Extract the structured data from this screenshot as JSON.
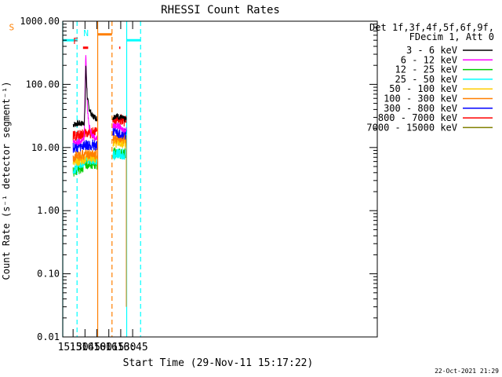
{
  "chart_data": {
    "type": "line",
    "title": "RHESSI Count Rates",
    "xlabel": "Start Time (29-Nov-11 15:17:22)",
    "ylabel": "Count Rate (s⁻¹ detector segment⁻¹)",
    "yscale": "log",
    "xlim": [
      917,
      1313
    ],
    "ylim": [
      0.01,
      1000
    ],
    "x_unit": "minutes after 00:00 UT",
    "x_ticks": [
      {
        "value": 930,
        "label": "15:30"
      },
      {
        "value": 945,
        "label": "15:45"
      },
      {
        "value": 960,
        "label": "16:00"
      },
      {
        "value": 975,
        "label": "16:15"
      },
      {
        "value": 990,
        "label": "16:30"
      },
      {
        "value": 1005,
        "label": "16:45"
      }
    ],
    "y_ticks": [
      {
        "value": 0.01,
        "label": "0.01"
      },
      {
        "value": 0.1,
        "label": "0.10"
      },
      {
        "value": 1,
        "label": "1.00"
      },
      {
        "value": 10,
        "label": "10.00"
      },
      {
        "value": 100,
        "label": "100.00"
      },
      {
        "value": 1000,
        "label": "1000.00"
      }
    ],
    "legend_header": [
      "Det 1f,3f,4f,5f,6f,9f,",
      "FDecim 1, Att 0"
    ],
    "legend_position": "top-right",
    "series": [
      {
        "name": "3 - 6 keV",
        "color": "#000000",
        "x": [
          930,
          936,
          942,
          944,
          945,
          946,
          947,
          948,
          950,
          954,
          958,
          960,
          980,
          984,
          987,
          990,
          995,
          997
        ],
        "y": [
          23,
          24,
          24,
          25,
          40,
          200,
          110,
          60,
          42,
          32,
          30,
          28,
          30,
          32,
          31,
          30,
          28,
          28
        ]
      },
      {
        "name": "6 - 12 keV",
        "color": "#ff00ff",
        "x": [
          930,
          936,
          942,
          944,
          945,
          946,
          947,
          948,
          950,
          954,
          958,
          960,
          980,
          984,
          987,
          990,
          995,
          997
        ],
        "y": [
          12,
          12,
          13,
          14,
          80,
          300,
          130,
          45,
          22,
          16,
          14,
          14,
          22,
          22,
          22,
          20,
          19,
          19
        ]
      },
      {
        "name": "12 - 25 keV",
        "color": "#00cc00",
        "x": [
          930,
          942,
          946,
          950,
          960,
          980,
          990,
          997
        ],
        "y": [
          4,
          5,
          5.5,
          5.5,
          5.5,
          8,
          8,
          8
        ]
      },
      {
        "name": "25 - 50 keV",
        "color": "#00ffff",
        "x": [
          930,
          942,
          946,
          950,
          960,
          980,
          990,
          997
        ],
        "y": [
          4.5,
          5.5,
          6.5,
          6.5,
          6.5,
          7.5,
          8,
          8
        ]
      },
      {
        "name": "50 - 100 keV",
        "color": "#ffcc00",
        "x": [
          930,
          942,
          946,
          950,
          960,
          980,
          990,
          997
        ],
        "y": [
          6,
          6.5,
          7,
          7,
          7,
          12,
          12,
          12
        ]
      },
      {
        "name": "100 - 300 keV",
        "color": "#ff7f00",
        "x": [
          930,
          942,
          946,
          950,
          960,
          980,
          990,
          997
        ],
        "y": [
          7,
          7.5,
          8,
          8,
          8,
          14,
          14,
          14
        ]
      },
      {
        "name": "300 - 800 keV",
        "color": "#0000ff",
        "x": [
          930,
          942,
          946,
          950,
          960,
          980,
          990,
          997
        ],
        "y": [
          10,
          10.5,
          11,
          11,
          11,
          17,
          17,
          16
        ]
      },
      {
        "name": "800 - 7000 keV",
        "color": "#ff0000",
        "x": [
          930,
          942,
          946,
          950,
          960,
          980,
          990,
          997
        ],
        "y": [
          15,
          16,
          17,
          17,
          17,
          27,
          27,
          26
        ]
      },
      {
        "name": "7000 - 15000 keV",
        "color": "#808000",
        "x": [],
        "y": []
      }
    ],
    "vertical_lines": [
      {
        "x": 917,
        "color": "#00ffff",
        "dashed": false
      },
      {
        "x": 935,
        "color": "#00ffff",
        "dashed": true
      },
      {
        "x": 961,
        "color": "#ff7f00",
        "dashed": false
      },
      {
        "x": 979,
        "color": "#ff7f00",
        "dashed": true
      },
      {
        "x": 997.5,
        "color": "#00ffff",
        "dashed": false
      },
      {
        "x": 1015,
        "color": "#00ffff",
        "dashed": true
      }
    ],
    "flag_bars": [
      {
        "label": "N",
        "color": "#00ffff",
        "segments": [
          [
            917,
            934.5
          ],
          [
            997.5,
            1015
          ]
        ],
        "y": 500
      },
      {
        "label": "F",
        "color": "#ff0000",
        "segments": [
          [
            942.5,
            949
          ]
        ],
        "y": 380
      },
      {
        "label": "S",
        "color": "#ff7f00",
        "segments": [
          [
            961,
            979
          ]
        ],
        "y": 620
      },
      {
        "label": "",
        "color": "#ff0000",
        "segments": [
          [
            988,
            989.5
          ]
        ],
        "y": 380
      }
    ]
  },
  "footer": {
    "timestamp": "22-Oct-2021 21:29"
  }
}
